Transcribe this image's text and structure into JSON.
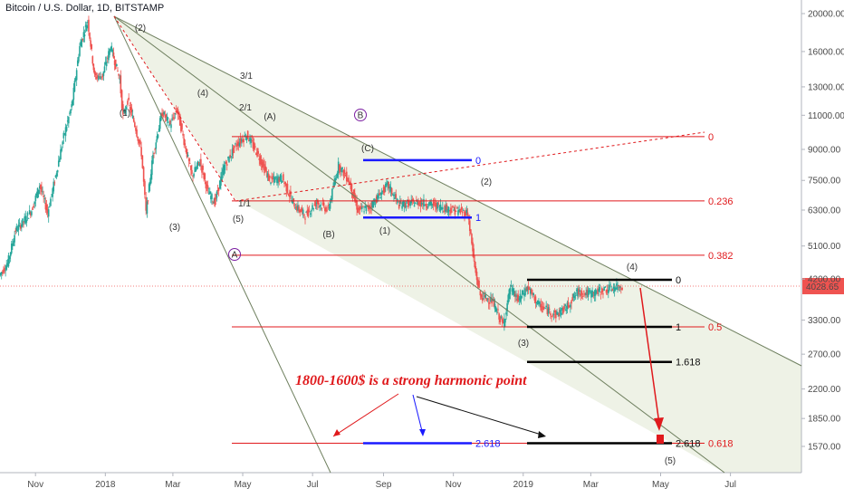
{
  "header": {
    "title": "Bitcoin / U.S. Dollar, 1D, BITSTAMP"
  },
  "chart_data": {
    "type": "candlestick",
    "title": "Bitcoin / U.S. Dollar, 1D, BITSTAMP",
    "yscale": "log",
    "ylim": [
      1450,
      22000
    ],
    "xlabel": "",
    "ylabel": "",
    "y_ticks": [
      "20000.00",
      "16000.00",
      "13000.00",
      "11000.00",
      "9000.00",
      "7500.00",
      "6300.00",
      "5100.00",
      "4200.00",
      "3300.00",
      "2700.00",
      "2200.00",
      "1850.00",
      "1570.00"
    ],
    "x_ticks": [
      "Nov",
      "2018",
      "Mar",
      "May",
      "Jul",
      "Sep",
      "Nov",
      "2019",
      "Mar",
      "May",
      "Jul"
    ],
    "current_price": "4028.65",
    "price_path": [
      [
        "2017-10-01",
        4300
      ],
      [
        "2017-10-08",
        4600
      ],
      [
        "2017-10-15",
        5600
      ],
      [
        "2017-10-22",
        5900
      ],
      [
        "2017-10-29",
        6300
      ],
      [
        "2017-11-05",
        7300
      ],
      [
        "2017-11-12",
        6200
      ],
      [
        "2017-11-19",
        7700
      ],
      [
        "2017-11-26",
        9700
      ],
      [
        "2017-12-03",
        11600
      ],
      [
        "2017-12-10",
        16500
      ],
      [
        "2017-12-17",
        19200
      ],
      [
        "2017-12-23",
        13800
      ],
      [
        "2017-12-30",
        13900
      ],
      [
        "2018-01-06",
        16500
      ],
      [
        "2018-01-14",
        13600
      ],
      [
        "2018-01-17",
        10900
      ],
      [
        "2018-01-21",
        12000
      ],
      [
        "2018-01-28",
        10200
      ],
      [
        "2018-02-02",
        8800
      ],
      [
        "2018-02-06",
        6200
      ],
      [
        "2018-02-12",
        8700
      ],
      [
        "2018-02-20",
        11200
      ],
      [
        "2018-02-27",
        10400
      ],
      [
        "2018-03-05",
        11400
      ],
      [
        "2018-03-12",
        9200
      ],
      [
        "2018-03-18",
        7700
      ],
      [
        "2018-03-25",
        8400
      ],
      [
        "2018-04-01",
        7000
      ],
      [
        "2018-04-07",
        6600
      ],
      [
        "2018-04-15",
        8100
      ],
      [
        "2018-04-25",
        9200
      ],
      [
        "2018-05-05",
        9800
      ],
      [
        "2018-05-15",
        8700
      ],
      [
        "2018-05-25",
        7500
      ],
      [
        "2018-06-05",
        7600
      ],
      [
        "2018-06-15",
        6500
      ],
      [
        "2018-06-25",
        6100
      ],
      [
        "2018-07-05",
        6600
      ],
      [
        "2018-07-15",
        6300
      ],
      [
        "2018-07-24",
        8200
      ],
      [
        "2018-08-02",
        7500
      ],
      [
        "2018-08-10",
        6300
      ],
      [
        "2018-08-20",
        6400
      ],
      [
        "2018-09-05",
        7300
      ],
      [
        "2018-09-15",
        6500
      ],
      [
        "2018-10-01",
        6600
      ],
      [
        "2018-10-15",
        6500
      ],
      [
        "2018-11-01",
        6300
      ],
      [
        "2018-11-14",
        6200
      ],
      [
        "2018-11-20",
        4500
      ],
      [
        "2018-11-25",
        3800
      ],
      [
        "2018-12-05",
        3700
      ],
      [
        "2018-12-15",
        3200
      ],
      [
        "2018-12-21",
        4000
      ],
      [
        "2018-12-28",
        3700
      ],
      [
        "2019-01-05",
        4000
      ],
      [
        "2019-01-15",
        3600
      ],
      [
        "2019-01-30",
        3400
      ],
      [
        "2019-02-08",
        3550
      ],
      [
        "2019-02-18",
        3900
      ],
      [
        "2019-03-01",
        3850
      ],
      [
        "2019-03-15",
        3950
      ],
      [
        "2019-03-24",
        4000
      ],
      [
        "2019-03-29",
        4030
      ]
    ],
    "wave_labels": [
      "(2)",
      "(1)",
      "(4)",
      "(3)",
      "(5)",
      "(A)",
      "(B)",
      "(C)",
      "(1)",
      "(2)",
      "(3)",
      "(4)",
      "(5)",
      "1/1",
      "2/1",
      "3/1"
    ],
    "circled_labels": [
      "A",
      "B"
    ],
    "fib_top": [
      {
        "label": "0",
        "value": 9700
      },
      {
        "label": "0.236",
        "value": 6650
      },
      {
        "label": "0.382",
        "value": 4830
      },
      {
        "label": "0.5",
        "value": 3170
      },
      {
        "label": "0.618",
        "value": 1600
      }
    ],
    "fib_blue": [
      {
        "label": "0",
        "value": 8450
      },
      {
        "label": "1",
        "value": 6030
      },
      {
        "label": "2.618",
        "value": 1600
      }
    ],
    "fib_black": [
      {
        "label": "0",
        "value": 4180
      },
      {
        "label": "1",
        "value": 3170
      },
      {
        "label": "1.618",
        "value": 2580
      },
      {
        "label": "2.618",
        "value": 1600
      }
    ],
    "annotation": "1800-1600$ is a strong harmonic point",
    "colors": {
      "up": "#26a69a",
      "down": "#ef5350",
      "fib_red": "#e0191c",
      "fib_blue": "#1a1aff",
      "fib_black": "#000000",
      "fan": "#6e7f5e",
      "fan_fill": "#eef2e6",
      "axis_bg": "#ffffff"
    }
  }
}
